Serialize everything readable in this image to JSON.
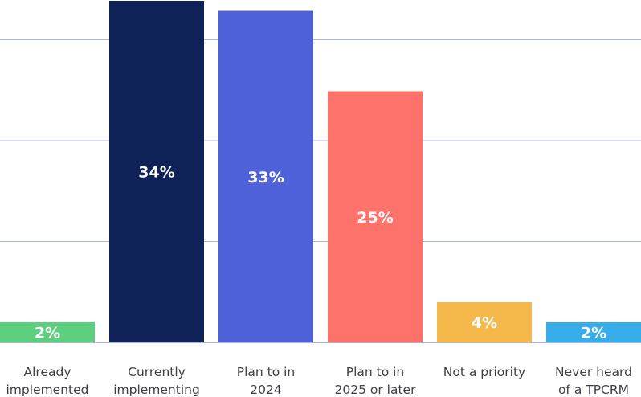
{
  "chart_data": {
    "type": "bar",
    "categories": [
      [
        "Already",
        "implemented"
      ],
      [
        "Currently",
        "implementing"
      ],
      [
        "Plan to in",
        "2024"
      ],
      [
        "Plan to in",
        "2025 or later"
      ],
      [
        "Not a priority"
      ],
      [
        "Never heard",
        "of a TPCRM"
      ]
    ],
    "values": [
      2,
      34,
      33,
      25,
      4,
      2
    ],
    "data_labels": [
      "2%",
      "34%",
      "33%",
      "25%",
      "4%",
      "2%"
    ],
    "colors": [
      "#5ecf7f",
      "#0f2257",
      "#4f61d9",
      "#fd726a",
      "#f4b94a",
      "#37ade9"
    ],
    "ylim": [
      0,
      34
    ],
    "grid": true,
    "gridline_color": "#a9b1ee",
    "title": "",
    "xlabel": "",
    "ylabel": ""
  }
}
